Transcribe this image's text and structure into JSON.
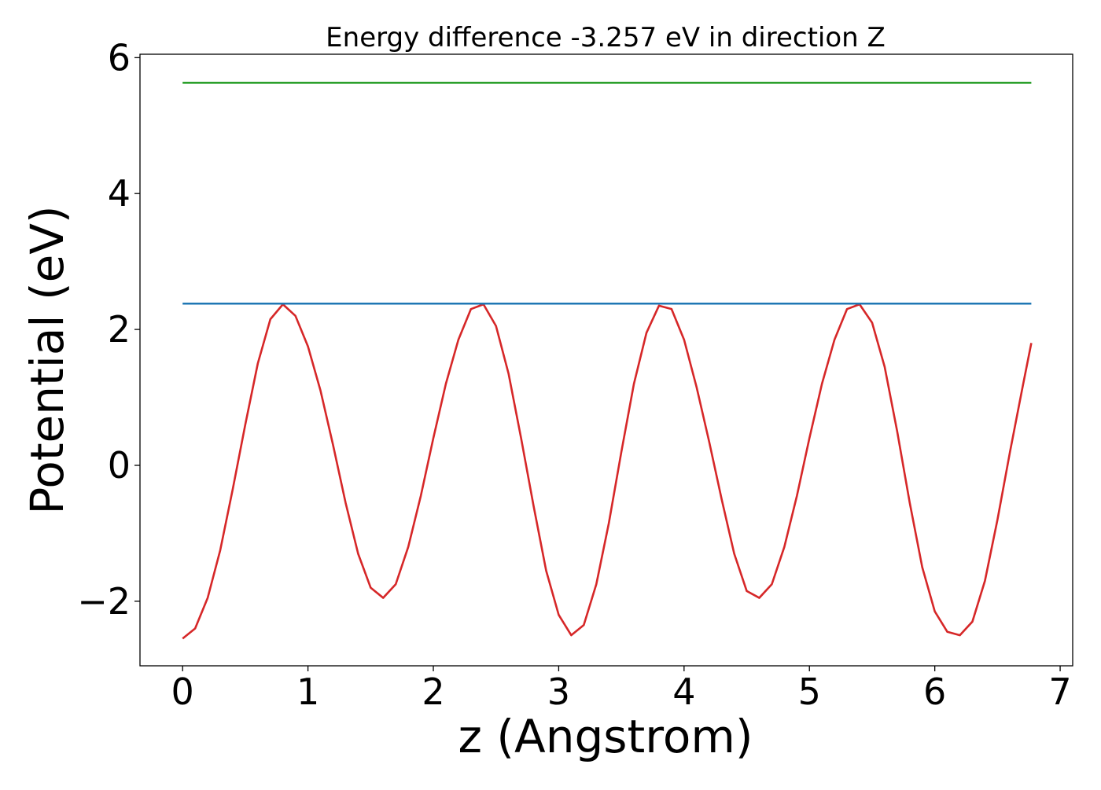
{
  "chart_data": {
    "type": "line",
    "title": "Energy difference -3.257 eV in direction Z",
    "xlabel": "z (Angstrom)",
    "ylabel": "Potential (eV)",
    "xlim": [
      -0.34,
      7.1
    ],
    "ylim": [
      -2.95,
      6.05
    ],
    "x_ticks": [
      0,
      1,
      2,
      3,
      4,
      5,
      6,
      7
    ],
    "x_tick_labels": [
      "0",
      "1",
      "2",
      "3",
      "4",
      "5",
      "6",
      "7"
    ],
    "y_ticks": [
      -2,
      0,
      2,
      4,
      6
    ],
    "y_tick_labels": [
      "−2",
      "0",
      "2",
      "4",
      "6"
    ],
    "grid": false,
    "legend": "none",
    "series": [
      {
        "color": "#d62728",
        "x": [
          0,
          0.1,
          0.2,
          0.3,
          0.4,
          0.5,
          0.6,
          0.7,
          0.8,
          0.9,
          1.0,
          1.1,
          1.2,
          1.3,
          1.4,
          1.5,
          1.6,
          1.7,
          1.8,
          1.9,
          2.0,
          2.1,
          2.2,
          2.3,
          2.4,
          2.5,
          2.6,
          2.7,
          2.8,
          2.9,
          3.0,
          3.1,
          3.2,
          3.3,
          3.4,
          3.5,
          3.6,
          3.7,
          3.8,
          3.9,
          4.0,
          4.1,
          4.2,
          4.3,
          4.4,
          4.5,
          4.6,
          4.7,
          4.8,
          4.9,
          5.0,
          5.1,
          5.2,
          5.3,
          5.4,
          5.5,
          5.6,
          5.7,
          5.8,
          5.9,
          6.0,
          6.1,
          6.2,
          6.3,
          6.4,
          6.5,
          6.6,
          6.7,
          6.77
        ],
        "y": [
          -2.55,
          -2.4,
          -1.95,
          -1.25,
          -0.35,
          0.6,
          1.5,
          2.15,
          2.37,
          2.2,
          1.75,
          1.1,
          0.3,
          -0.55,
          -1.3,
          -1.8,
          -1.95,
          -1.75,
          -1.2,
          -0.45,
          0.4,
          1.2,
          1.85,
          2.3,
          2.37,
          2.05,
          1.35,
          0.4,
          -0.6,
          -1.55,
          -2.2,
          -2.5,
          -2.35,
          -1.75,
          -0.85,
          0.2,
          1.2,
          1.95,
          2.35,
          2.3,
          1.85,
          1.15,
          0.35,
          -0.5,
          -1.3,
          -1.85,
          -1.95,
          -1.75,
          -1.2,
          -0.45,
          0.4,
          1.2,
          1.85,
          2.3,
          2.37,
          2.1,
          1.45,
          0.5,
          -0.55,
          -1.5,
          -2.15,
          -2.45,
          -2.5,
          -2.3,
          -1.7,
          -0.8,
          0.2,
          1.15,
          1.8
        ]
      },
      {
        "color": "#1f77b4",
        "x": [
          0,
          6.77
        ],
        "y": [
          2.38,
          2.38
        ]
      },
      {
        "color": "#2ca02c",
        "x": [
          0,
          6.77
        ],
        "y": [
          5.63,
          5.63
        ]
      }
    ]
  }
}
